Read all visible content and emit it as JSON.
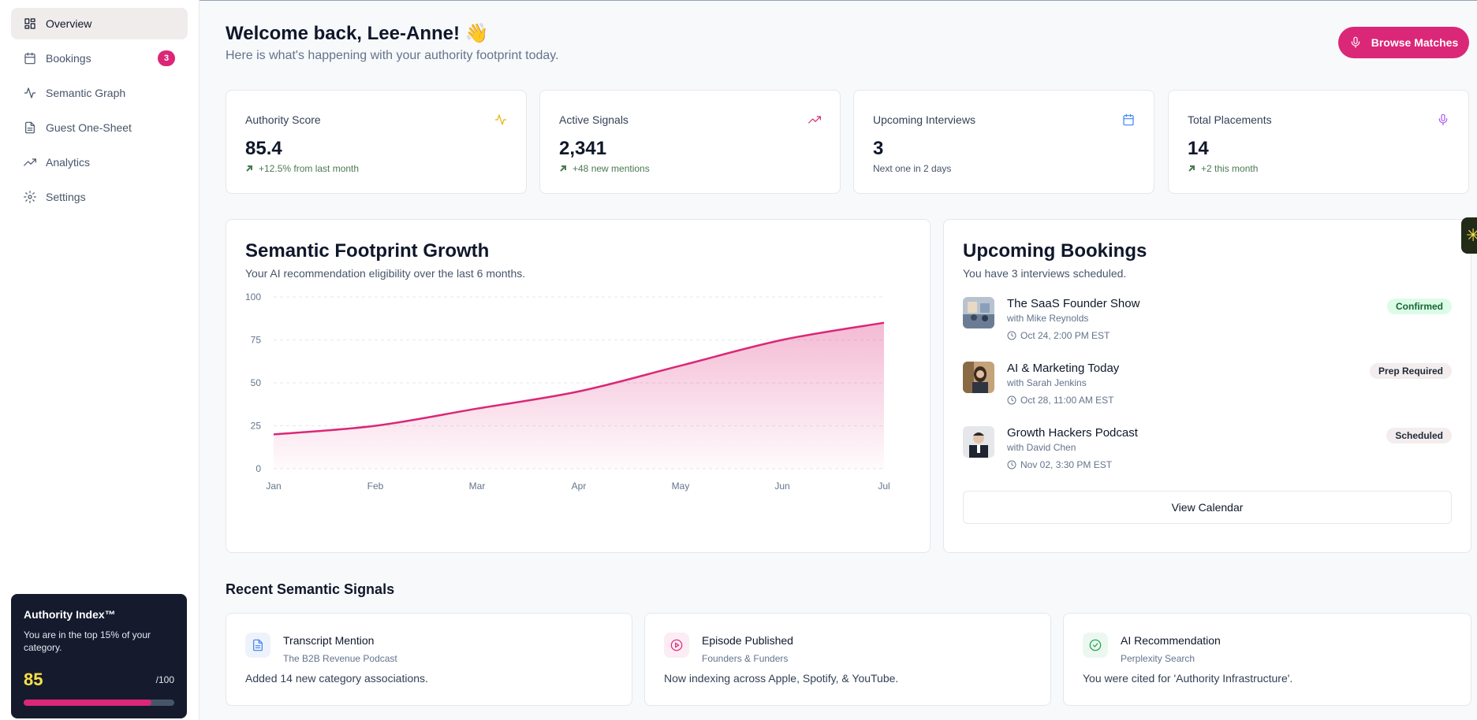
{
  "sidebar": {
    "items": [
      {
        "label": "Overview",
        "icon": "dashboard-icon",
        "active": true
      },
      {
        "label": "Bookings",
        "icon": "calendar-icon",
        "badge": "3"
      },
      {
        "label": "Semantic Graph",
        "icon": "activity-icon"
      },
      {
        "label": "Guest One-Sheet",
        "icon": "document-icon"
      },
      {
        "label": "Analytics",
        "icon": "trending-up-icon"
      },
      {
        "label": "Settings",
        "icon": "gear-icon"
      }
    ],
    "authority": {
      "title": "Authority Index™",
      "text": "You are in the top 15% of your category.",
      "score": "85",
      "max": "/100",
      "progress_percent": 85
    }
  },
  "header": {
    "welcome": "Welcome back, Lee-Anne! 👋",
    "subtitle": "Here is what's happening with your authority footprint today.",
    "browse_label": "Browse Matches"
  },
  "stats": [
    {
      "label": "Authority Score",
      "value": "85.4",
      "note": "+12.5% from last month",
      "icon": "pulse-icon",
      "icon_color": "#eab308",
      "trend": true
    },
    {
      "label": "Active Signals",
      "value": "2,341",
      "note": "+48 new mentions",
      "icon": "trending-up-icon",
      "icon_color": "#db2777",
      "trend": true
    },
    {
      "label": "Upcoming Interviews",
      "value": "3",
      "note": "Next one in 2 days",
      "icon": "calendar-icon",
      "icon_color": "#3b82f6",
      "trend": false
    },
    {
      "label": "Total Placements",
      "value": "14",
      "note": "+2 this month",
      "icon": "mic-icon",
      "icon_color": "#a855f7",
      "trend": true
    }
  ],
  "chart_panel": {
    "title": "Semantic Footprint Growth",
    "subtitle": "Your AI recommendation eligibility over the last 6 months."
  },
  "chart_data": {
    "type": "area",
    "title": "Semantic Footprint Growth",
    "categories": [
      "Jan",
      "Feb",
      "Mar",
      "Apr",
      "May",
      "Jun",
      "Jul"
    ],
    "values": [
      20,
      25,
      35,
      45,
      60,
      75,
      85
    ],
    "yticks": [
      "0",
      "25",
      "50",
      "75",
      "100"
    ],
    "ylim": [
      0,
      100
    ],
    "grid": true,
    "line_color": "#db2777"
  },
  "bookings_panel": {
    "title": "Upcoming Bookings",
    "subtitle": "You have 3 interviews scheduled.",
    "items": [
      {
        "name": "The SaaS Founder Show",
        "host": "with Mike Reynolds",
        "time": "Oct 24, 2:00 PM EST",
        "status": "Confirmed"
      },
      {
        "name": "AI & Marketing Today",
        "host": "with Sarah Jenkins",
        "time": "Oct 28, 11:00 AM EST",
        "status": "Prep Required"
      },
      {
        "name": "Growth Hackers Podcast",
        "host": "with David Chen",
        "time": "Nov 02, 3:30 PM EST",
        "status": "Scheduled"
      }
    ],
    "view_calendar": "View Calendar"
  },
  "signals": {
    "title": "Recent Semantic Signals",
    "items": [
      {
        "title": "Transcript Mention",
        "source": "The B2B Revenue Podcast",
        "desc": "Added 14 new category associations.",
        "icon": "document-icon",
        "icon_color": "#3b82f6"
      },
      {
        "title": "Episode Published",
        "source": "Founders & Funders",
        "desc": "Now indexing across Apple, Spotify, & YouTube.",
        "icon": "play-circle-icon",
        "icon_color": "#db2777"
      },
      {
        "title": "AI Recommendation",
        "source": "Perplexity Search",
        "desc": "You were cited for 'Authority Infrastructure'.",
        "icon": "check-circle-icon",
        "icon_color": "#16a34a"
      }
    ]
  }
}
